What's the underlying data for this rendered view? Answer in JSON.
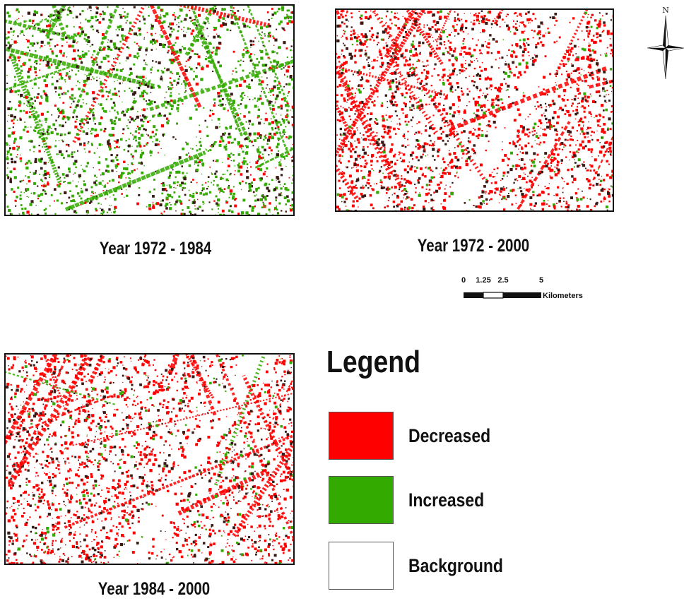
{
  "colors": {
    "decreased": "#ff0000",
    "increased": "#33aa00",
    "background": "#ffffff",
    "speckle": "#3a1a14"
  },
  "panels": [
    {
      "caption": "Year 1972 - 1984",
      "dominant": "increased",
      "mix": 0.8
    },
    {
      "caption": "Year 1972 - 2000",
      "dominant": "decreased",
      "mix": 0.88
    },
    {
      "caption": "Year 1984 - 2000",
      "dominant": "decreased",
      "mix": 0.9
    }
  ],
  "north_arrow": {
    "label": "N",
    "icon": "compass-rose-icon"
  },
  "scale_bar": {
    "ticks": [
      "0",
      "1.25",
      "2.5",
      "5"
    ],
    "unit": "Kilometers"
  },
  "legend": {
    "title": "Legend",
    "items": [
      {
        "label": "Decreased",
        "color_key": "decreased"
      },
      {
        "label": "Increased",
        "color_key": "increased"
      },
      {
        "label": "Background",
        "color_key": "background"
      }
    ]
  }
}
